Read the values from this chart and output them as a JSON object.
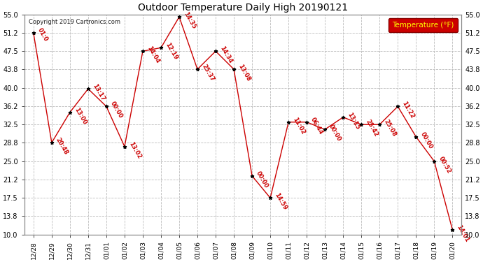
{
  "title": "Outdoor Temperature Daily High 20190121",
  "copyright_text": "Copyright 2019 Cartronics.com",
  "legend_label": "Temperature (°F)",
  "x_labels": [
    "12/28",
    "12/29",
    "12/30",
    "12/31",
    "01/01",
    "01/02",
    "01/03",
    "01/04",
    "01/05",
    "01/06",
    "01/07",
    "01/08",
    "01/09",
    "01/10",
    "01/11",
    "01/12",
    "01/13",
    "01/14",
    "01/15",
    "01/16",
    "01/17",
    "01/18",
    "01/19",
    "01/20"
  ],
  "y_values": [
    51.2,
    28.8,
    35.0,
    39.8,
    36.2,
    28.0,
    47.5,
    48.2,
    54.5,
    43.8,
    47.5,
    43.8,
    22.0,
    17.5,
    33.0,
    33.0,
    31.5,
    34.0,
    32.5,
    32.5,
    36.2,
    30.0,
    25.0,
    11.0
  ],
  "time_labels": [
    "01:0",
    "20:48",
    "13:00",
    "13:17",
    "00:00",
    "13:02",
    "14:04",
    "12:19",
    "14:35",
    "25:37",
    "14:34",
    "13:08",
    "00:00",
    "14:59",
    "11:02",
    "06:44",
    "00:00",
    "13:15",
    "25:42",
    "25:08",
    "11:22",
    "00:00",
    "00:52",
    "14:01"
  ],
  "ylim": [
    10.0,
    55.0
  ],
  "yticks": [
    10.0,
    13.8,
    17.5,
    21.2,
    25.0,
    28.8,
    32.5,
    36.2,
    40.0,
    43.8,
    47.5,
    51.2,
    55.0
  ],
  "line_color": "#cc0000",
  "marker_color": "#000000",
  "bg_color": "#ffffff",
  "grid_color": "#bbbbbb",
  "text_color": "#cc0000",
  "title_color": "#000000",
  "legend_bg": "#cc0000",
  "legend_text": "#ffff00",
  "fig_width": 6.9,
  "fig_height": 3.75,
  "dpi": 100
}
